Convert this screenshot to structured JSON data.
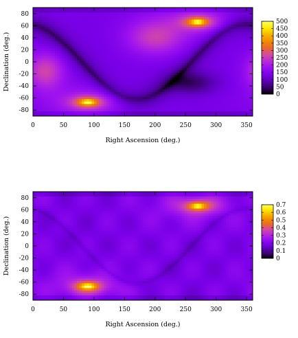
{
  "chart_data": [
    {
      "type": "heatmap",
      "xlabel": "Right Ascension (deg.)",
      "ylabel": "Declination (deg.)",
      "xlim": [
        0,
        360
      ],
      "ylim": [
        -90,
        90
      ],
      "xticks": [
        0,
        50,
        100,
        150,
        200,
        250,
        300,
        350
      ],
      "yticks": [
        -80,
        -60,
        -40,
        -20,
        0,
        20,
        40,
        60,
        80
      ],
      "colorbar": {
        "min": 0,
        "max": 500,
        "ticks": [
          0,
          50,
          100,
          150,
          200,
          250,
          300,
          350,
          400,
          450,
          500
        ]
      },
      "hotspots": [
        {
          "ra": 270,
          "dec": 66,
          "level": "peak"
        },
        {
          "ra": 90,
          "dec": -67,
          "level": "peak"
        }
      ],
      "dark_band": "S-shaped low-density band along the ecliptic"
    },
    {
      "type": "heatmap",
      "xlabel": "Right Ascension (deg.)",
      "ylabel": "Declination (deg.)",
      "xlim": [
        0,
        360
      ],
      "ylim": [
        -90,
        90
      ],
      "xticks": [
        0,
        50,
        100,
        150,
        200,
        250,
        300,
        350
      ],
      "yticks": [
        -80,
        -60,
        -40,
        -20,
        0,
        20,
        40,
        60,
        80
      ],
      "colorbar": {
        "min": 0,
        "max": 0.7,
        "ticks": [
          0,
          0.1,
          0.2,
          0.3,
          0.4,
          0.5,
          0.6,
          0.7
        ]
      },
      "hotspots": [
        {
          "ra": 270,
          "dec": 66,
          "level": "peak"
        },
        {
          "ra": 90,
          "dec": -67,
          "level": "peak"
        }
      ]
    }
  ],
  "colors": {
    "palette": [
      "#000000",
      "#3a006a",
      "#5a00b4",
      "#7a00e8",
      "#9a10f0",
      "#b82ad8",
      "#d34aa2",
      "#e7672e",
      "#f28a00",
      "#f8b400",
      "#ffe800",
      "#ffff60"
    ]
  }
}
